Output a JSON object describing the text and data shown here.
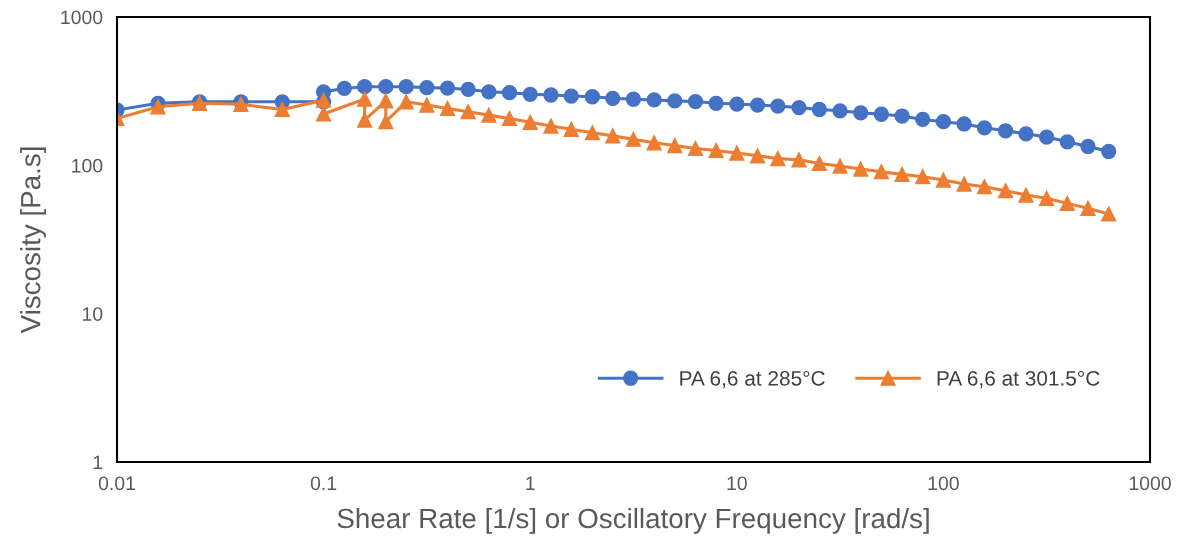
{
  "chart_data": {
    "type": "line",
    "xlabel": "Shear Rate [1/s] or Oscillatory Frequency [rad/s]",
    "ylabel": "Viscosity [Pa.s]",
    "log": "xy",
    "xlim": [
      0.01,
      1000
    ],
    "ylim": [
      1,
      1000
    ],
    "xticks": [
      {
        "value": 0.01,
        "label": "0.01"
      },
      {
        "value": 0.1,
        "label": "0.1"
      },
      1,
      10,
      100,
      1000
    ],
    "yticks": [
      1,
      10,
      100,
      1000
    ],
    "grid": false,
    "legend": "bottom right",
    "line_style": "solid",
    "series": [
      {
        "name": "PA 6,6 at 285°C",
        "color": "#4472c4",
        "marker": "circle",
        "x": [
          0.01,
          0.0158,
          0.0251,
          0.0398,
          0.0631,
          0.1,
          0.1,
          0.126,
          0.158,
          0.2,
          0.251,
          0.316,
          0.398,
          0.501,
          0.631,
          0.794,
          1,
          1.26,
          1.58,
          2,
          2.51,
          3.16,
          3.98,
          5.01,
          6.31,
          7.94,
          10,
          12.6,
          15.8,
          20,
          25.1,
          31.6,
          39.8,
          50.1,
          63.1,
          79.4,
          100,
          126,
          158,
          200,
          251,
          316,
          398,
          501,
          631
        ],
        "values": [
          236,
          262,
          268,
          268,
          268,
          268,
          313,
          330,
          339,
          339,
          339,
          334,
          332,
          325,
          313,
          309,
          301,
          298,
          293,
          290,
          283,
          279,
          276,
          272,
          269,
          262,
          259,
          255,
          251,
          245,
          238,
          233,
          226,
          221,
          215,
          204,
          197,
          190,
          179,
          171,
          163,
          155,
          144,
          134,
          124
        ]
      },
      {
        "name": "PA 6,6 at 301.5°C",
        "color": "#ed7d31",
        "marker": "triangle",
        "x": [
          0.01,
          0.0158,
          0.0251,
          0.0398,
          0.0631,
          0.1,
          0.1,
          0.158,
          0.158,
          0.2,
          0.2,
          0.251,
          0.316,
          0.398,
          0.501,
          0.631,
          0.794,
          1,
          1.26,
          1.58,
          2,
          2.51,
          3.16,
          3.98,
          5.01,
          6.31,
          7.94,
          10,
          12.6,
          15.8,
          20,
          25.1,
          31.6,
          39.8,
          50.1,
          63.1,
          79.4,
          100,
          126,
          158,
          200,
          251,
          316,
          398,
          501,
          631
        ],
        "values": [
          207,
          248,
          262,
          258,
          238,
          275,
          222,
          280,
          202,
          272,
          197,
          268,
          255,
          242,
          230,
          218,
          207,
          195,
          184,
          175,
          166,
          158,
          150,
          142,
          136,
          130,
          126,
          121,
          116,
          111,
          109,
          103,
          98.9,
          94.4,
          90.6,
          86.9,
          83.8,
          79.6,
          74.8,
          71.8,
          67.5,
          63.1,
          59.9,
          55.4,
          51.3,
          47.0
        ]
      }
    ]
  }
}
